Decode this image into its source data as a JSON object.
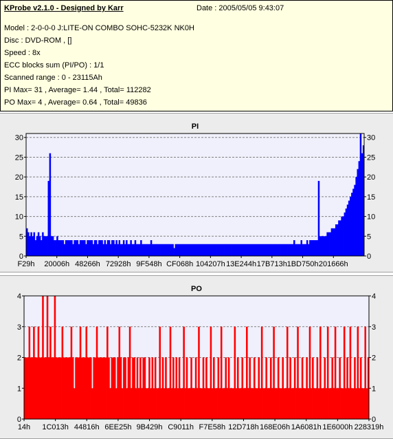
{
  "report": {
    "title": "KProbe v2.1.0 - Designed by Karr",
    "date": "Date : 2005/05/05 9:43:07",
    "lines": [
      "Model : 2-0-0-0 J:LITE-ON COMBO SOHC-5232K NK0H",
      "Disc : DVD-ROM ,  []",
      "Speed : 8x",
      "ECC blocks sum (PI/PO) : 1/1",
      "Scanned range : 0 - 23115Ah",
      "PI Max= 31 , Average= 1.44 , Total= 112282",
      "PO Max= 4 , Average= 0.64 , Total= 49836"
    ]
  },
  "colors": {
    "pi": "#0000ff",
    "po": "#ff0000",
    "plot_bg": "#f0f0fc",
    "grid": "#808080"
  },
  "chart_data": [
    {
      "type": "bar",
      "title": "PI",
      "ylim": [
        0,
        31
      ],
      "yticks": [
        0,
        5,
        10,
        15,
        20,
        25,
        30
      ],
      "xlim": [
        0,
        231
      ],
      "xticks": [
        {
          "label": "F29h",
          "pos": 0
        },
        {
          "label": "20006h",
          "pos": 21
        },
        {
          "label": "48266h",
          "pos": 42
        },
        {
          "label": "72928h",
          "pos": 63
        },
        {
          "label": "9F548h",
          "pos": 84
        },
        {
          "label": "CF068h",
          "pos": 105
        },
        {
          "label": "104207h",
          "pos": 126
        },
        {
          "label": "13E244h",
          "pos": 147
        },
        {
          "label": "17B713h",
          "pos": 168
        },
        {
          "label": "1BD750h",
          "pos": 189
        },
        {
          "label": "201666h",
          "pos": 210
        }
      ],
      "series": [
        {
          "values": [
            7,
            6,
            5,
            6,
            5,
            6,
            4,
            5,
            6,
            5,
            4,
            6,
            5,
            5,
            5,
            19,
            26,
            5,
            5,
            4,
            4,
            5,
            4,
            4,
            4,
            4,
            3,
            4,
            4,
            4,
            4,
            4,
            3,
            4,
            4,
            4,
            3,
            4,
            4,
            4,
            4,
            3,
            4,
            4,
            4,
            4,
            3,
            4,
            4,
            3,
            4,
            4,
            4,
            3,
            4,
            3,
            4,
            4,
            3,
            4,
            4,
            3,
            4,
            3,
            4,
            3,
            3,
            4,
            3,
            4,
            3,
            3,
            4,
            3,
            3,
            4,
            3,
            3,
            3,
            4,
            3,
            3,
            3,
            3,
            3,
            3,
            4,
            3,
            3,
            3,
            3,
            3,
            3,
            3,
            3,
            3,
            3,
            3,
            3,
            3,
            3,
            3,
            2,
            3,
            3,
            3,
            3,
            3,
            3,
            3,
            3,
            3,
            3,
            3,
            3,
            3,
            3,
            3,
            3,
            3,
            3,
            3,
            3,
            3,
            3,
            3,
            3,
            3,
            3,
            3,
            3,
            3,
            3,
            3,
            3,
            3,
            3,
            3,
            3,
            3,
            3,
            3,
            3,
            3,
            3,
            3,
            3,
            3,
            3,
            3,
            3,
            3,
            3,
            3,
            3,
            3,
            3,
            3,
            3,
            3,
            3,
            3,
            3,
            3,
            3,
            3,
            3,
            3,
            3,
            3,
            3,
            3,
            3,
            3,
            3,
            3,
            3,
            3,
            3,
            3,
            3,
            3,
            3,
            3,
            3,
            4,
            3,
            3,
            3,
            3,
            4,
            3,
            3,
            3,
            4,
            3,
            4,
            4,
            4,
            4,
            4,
            4,
            19,
            5,
            5,
            5,
            5,
            5,
            6,
            6,
            6,
            7,
            7,
            7,
            8,
            8,
            9,
            9,
            10,
            10,
            11,
            12,
            13,
            14,
            15,
            16,
            17,
            18,
            20,
            22,
            24,
            31,
            26,
            28
          ]
        }
      ]
    },
    {
      "type": "bar",
      "title": "PO",
      "ylim": [
        0,
        4
      ],
      "yticks": [
        0,
        1,
        2,
        3,
        4
      ],
      "xlim": [
        0,
        231
      ],
      "xticks": [
        {
          "label": "14h",
          "pos": 0
        },
        {
          "label": "1C013h",
          "pos": 21
        },
        {
          "label": "44816h",
          "pos": 42
        },
        {
          "label": "6EE25h",
          "pos": 63
        },
        {
          "label": "9B429h",
          "pos": 84
        },
        {
          "label": "C9011h",
          "pos": 105
        },
        {
          "label": "F7E58h",
          "pos": 126
        },
        {
          "label": "12D718h",
          "pos": 147
        },
        {
          "label": "168E06h",
          "pos": 168
        },
        {
          "label": "1A6081h",
          "pos": 189
        },
        {
          "label": "1E6000h",
          "pos": 210
        },
        {
          "label": "228319h",
          "pos": 231
        }
      ],
      "series": [
        {
          "values": [
            2,
            2,
            2,
            3,
            2,
            2,
            3,
            2,
            2,
            3,
            2,
            2,
            4,
            2,
            2,
            4,
            2,
            3,
            2,
            2,
            4,
            2,
            2,
            2,
            2,
            3,
            2,
            2,
            2,
            2,
            2,
            3,
            2,
            1,
            2,
            2,
            2,
            3,
            2,
            2,
            2,
            3,
            2,
            2,
            2,
            1,
            2,
            2,
            3,
            2,
            2,
            2,
            2,
            2,
            2,
            3,
            2,
            1,
            2,
            2,
            2,
            1,
            2,
            3,
            2,
            1,
            2,
            2,
            1,
            2,
            3,
            1,
            2,
            2,
            1,
            2,
            1,
            2,
            1,
            2,
            2,
            1,
            1,
            2,
            1,
            2,
            1,
            2,
            1,
            1,
            3,
            1,
            2,
            1,
            2,
            1,
            1,
            3,
            1,
            2,
            1,
            2,
            1,
            2,
            1,
            1,
            3,
            1,
            2,
            1,
            1,
            2,
            1,
            1,
            2,
            1,
            3,
            1,
            1,
            2,
            1,
            2,
            1,
            1,
            3,
            1,
            2,
            1,
            1,
            2,
            1,
            3,
            1,
            1,
            2,
            1,
            2,
            1,
            1,
            1,
            3,
            1,
            2,
            1,
            1,
            2,
            1,
            1,
            3,
            1,
            2,
            1,
            1,
            2,
            1,
            1,
            2,
            1,
            3,
            1,
            1,
            2,
            1,
            1,
            2,
            1,
            3,
            1,
            1,
            2,
            1,
            1,
            2,
            1,
            1,
            3,
            1,
            2,
            1,
            1,
            2,
            1,
            3,
            1,
            1,
            2,
            1,
            1,
            2,
            1,
            3,
            1,
            2,
            1,
            1,
            2,
            1,
            3,
            1,
            1,
            2,
            1,
            3,
            1,
            1,
            2,
            1,
            3,
            1,
            1,
            2,
            1,
            1,
            3,
            1,
            2,
            1,
            3,
            1,
            1,
            2,
            1,
            3,
            1,
            2,
            1,
            1,
            3,
            1,
            2
          ]
        }
      ]
    }
  ]
}
